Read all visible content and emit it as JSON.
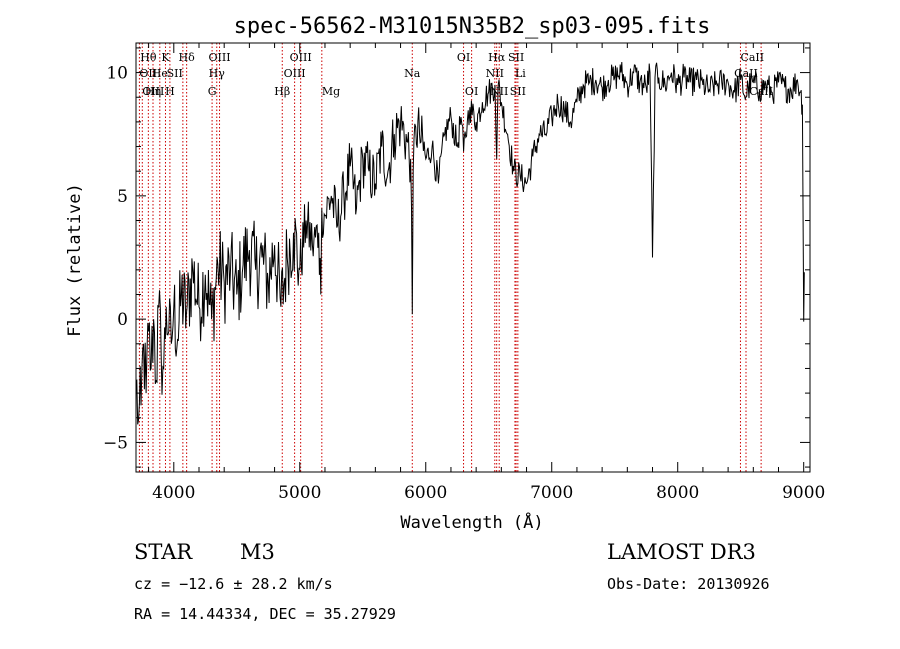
{
  "chart_data": {
    "type": "line",
    "title": "spec-56562-M31015N35B2_sp03-095.fits",
    "xlabel": "Wavelength (Å)",
    "ylabel": "Flux (relative)",
    "xlim": [
      3700,
      9050
    ],
    "ylim": [
      -6.2,
      11.2
    ],
    "xticks": [
      4000,
      5000,
      6000,
      7000,
      8000,
      9000
    ],
    "yticks": [
      -5,
      0,
      5,
      10
    ],
    "series": [
      {
        "name": "flux",
        "x": [
          3700,
          3720,
          3740,
          3760,
          3780,
          3800,
          3820,
          3840,
          3860,
          3880,
          3900,
          3920,
          3940,
          3960,
          3980,
          4000,
          4030,
          4060,
          4100,
          4150,
          4200,
          4250,
          4300,
          4350,
          4400,
          4450,
          4500,
          4550,
          4600,
          4650,
          4700,
          4750,
          4800,
          4850,
          4900,
          4950,
          5000,
          5050,
          5100,
          5150,
          5167,
          5175,
          5200,
          5250,
          5300,
          5350,
          5400,
          5450,
          5500,
          5550,
          5600,
          5650,
          5700,
          5750,
          5800,
          5850,
          5880,
          5893,
          5900,
          5920,
          5950,
          6000,
          6050,
          6100,
          6150,
          6200,
          6250,
          6280,
          6300,
          6330,
          6350,
          6400,
          6450,
          6500,
          6550,
          6563,
          6575,
          6600,
          6650,
          6700,
          6750,
          6800,
          6850,
          6900,
          6950,
          7000,
          7050,
          7100,
          7150,
          7200,
          7250,
          7300,
          7350,
          7400,
          7450,
          7500,
          7550,
          7600,
          7650,
          7700,
          7750,
          7780,
          7800,
          7820,
          7850,
          7900,
          7950,
          8000,
          8050,
          8100,
          8150,
          8200,
          8250,
          8300,
          8350,
          8400,
          8450,
          8500,
          8542,
          8560,
          8600,
          8650,
          8700,
          8750,
          8800,
          8850,
          8900,
          8950,
          8975,
          8990,
          9000,
          9005
        ],
        "values": [
          -2.5,
          -4.1,
          -3.5,
          -1.0,
          -3.0,
          -0.5,
          -2.0,
          0.0,
          -2.5,
          0.5,
          -1.5,
          -2.0,
          0.5,
          -0.5,
          -1.0,
          0.5,
          -0.8,
          1.0,
          0.2,
          2.0,
          0.5,
          1.8,
          0.0,
          2.2,
          1.5,
          2.0,
          1.0,
          2.2,
          2.8,
          2.0,
          2.5,
          1.5,
          3.0,
          0.5,
          2.5,
          3.5,
          2.0,
          4.0,
          3.0,
          3.5,
          1.0,
          4.5,
          4.2,
          5.0,
          3.8,
          5.0,
          6.2,
          4.5,
          6.5,
          6.0,
          5.5,
          7.0,
          6.0,
          7.5,
          8.0,
          7.2,
          6.5,
          0.2,
          6.0,
          7.8,
          7.5,
          6.5,
          7.0,
          5.5,
          7.5,
          8.2,
          7.0,
          8.2,
          6.8,
          8.0,
          8.6,
          8.0,
          8.8,
          9.2,
          9.5,
          6.5,
          9.5,
          8.8,
          7.5,
          6.0,
          5.8,
          5.5,
          6.6,
          7.5,
          7.5,
          8.2,
          8.8,
          8.5,
          8.0,
          8.8,
          9.5,
          9.6,
          9.7,
          9.4,
          9.7,
          9.8,
          10.0,
          9.5,
          10.0,
          9.6,
          9.4,
          10.0,
          2.5,
          9.8,
          9.8,
          9.5,
          10.0,
          9.5,
          9.8,
          9.6,
          9.7,
          9.5,
          9.3,
          9.5,
          9.6,
          9.6,
          9.2,
          9.7,
          9.0,
          9.4,
          9.6,
          9.3,
          9.5,
          9.2,
          9.6,
          9.4,
          9.3,
          9.7,
          9.2,
          8.7,
          -0.1,
          1.9
        ]
      }
    ],
    "spectral_lines": [
      {
        "label": "Hθ",
        "wave": 3798,
        "row": 0,
        "anchor": "middle"
      },
      {
        "label": "OII",
        "wave": 3727,
        "row": 1,
        "anchor": "start"
      },
      {
        "label": "OIII",
        "wave": 3750,
        "row": 2,
        "anchor": "start"
      },
      {
        "label": "Hη",
        "wave": 3835,
        "row": 2,
        "anchor": "middle"
      },
      {
        "label": "He",
        "wave": 3889,
        "row": 1,
        "anchor": "middle"
      },
      {
        "label": "K",
        "wave": 3934,
        "row": 0,
        "anchor": "middle"
      },
      {
        "label": "H",
        "wave": 3969,
        "row": 2,
        "anchor": "middle"
      },
      {
        "label": "SII",
        "wave": 4072,
        "row": 1,
        "anchor": "end"
      },
      {
        "label": "Hδ",
        "wave": 4102,
        "row": 0,
        "anchor": "middle"
      },
      {
        "label": "G",
        "wave": 4304,
        "row": 2,
        "anchor": "middle"
      },
      {
        "label": "OIII",
        "wave": 4363,
        "row": 0,
        "anchor": "middle"
      },
      {
        "label": "Hγ",
        "wave": 4341,
        "row": 1,
        "anchor": "middle"
      },
      {
        "label": "Hβ",
        "wave": 4861,
        "row": 2,
        "anchor": "middle"
      },
      {
        "label": "OIII",
        "wave": 5007,
        "row": 0,
        "anchor": "middle"
      },
      {
        "label": "OIII",
        "wave": 4959,
        "row": 1,
        "anchor": "middle"
      },
      {
        "label": "Mg",
        "wave": 5175,
        "row": 2,
        "anchor": "start"
      },
      {
        "label": "Na",
        "wave": 5893,
        "row": 1,
        "anchor": "middle"
      },
      {
        "label": "OI",
        "wave": 6300,
        "row": 0,
        "anchor": "middle"
      },
      {
        "label": "OI",
        "wave": 6364,
        "row": 2,
        "anchor": "middle"
      },
      {
        "label": "Hα",
        "wave": 6563,
        "row": 0,
        "anchor": "middle"
      },
      {
        "label": "NII",
        "wave": 6548,
        "row": 1,
        "anchor": "middle"
      },
      {
        "label": "NII",
        "wave": 6583,
        "row": 2,
        "anchor": "middle"
      },
      {
        "label": "SII",
        "wave": 6717,
        "row": 0,
        "anchor": "middle"
      },
      {
        "label": "Li",
        "wave": 6708,
        "row": 1,
        "anchor": "start"
      },
      {
        "label": "SII",
        "wave": 6731,
        "row": 2,
        "anchor": "middle"
      },
      {
        "label": "CaII",
        "wave": 8498,
        "row": 0,
        "anchor": "start"
      },
      {
        "label": "CaII",
        "wave": 8542,
        "row": 1,
        "anchor": "middle"
      },
      {
        "label": "CaII",
        "wave": 8662,
        "row": 2,
        "anchor": "middle"
      }
    ]
  },
  "info": {
    "class_type": "STAR",
    "subclass": "M3",
    "survey": "LAMOST DR3",
    "cz": "cz = −12.6 ± 28.2 km/s",
    "obs_date": "Obs-Date: 20130926",
    "coords": "RA =  14.44334, DEC =  35.27929"
  },
  "colors": {
    "line_marker": "#cc0000",
    "spectrum": "#000000",
    "axis": "#000000"
  }
}
